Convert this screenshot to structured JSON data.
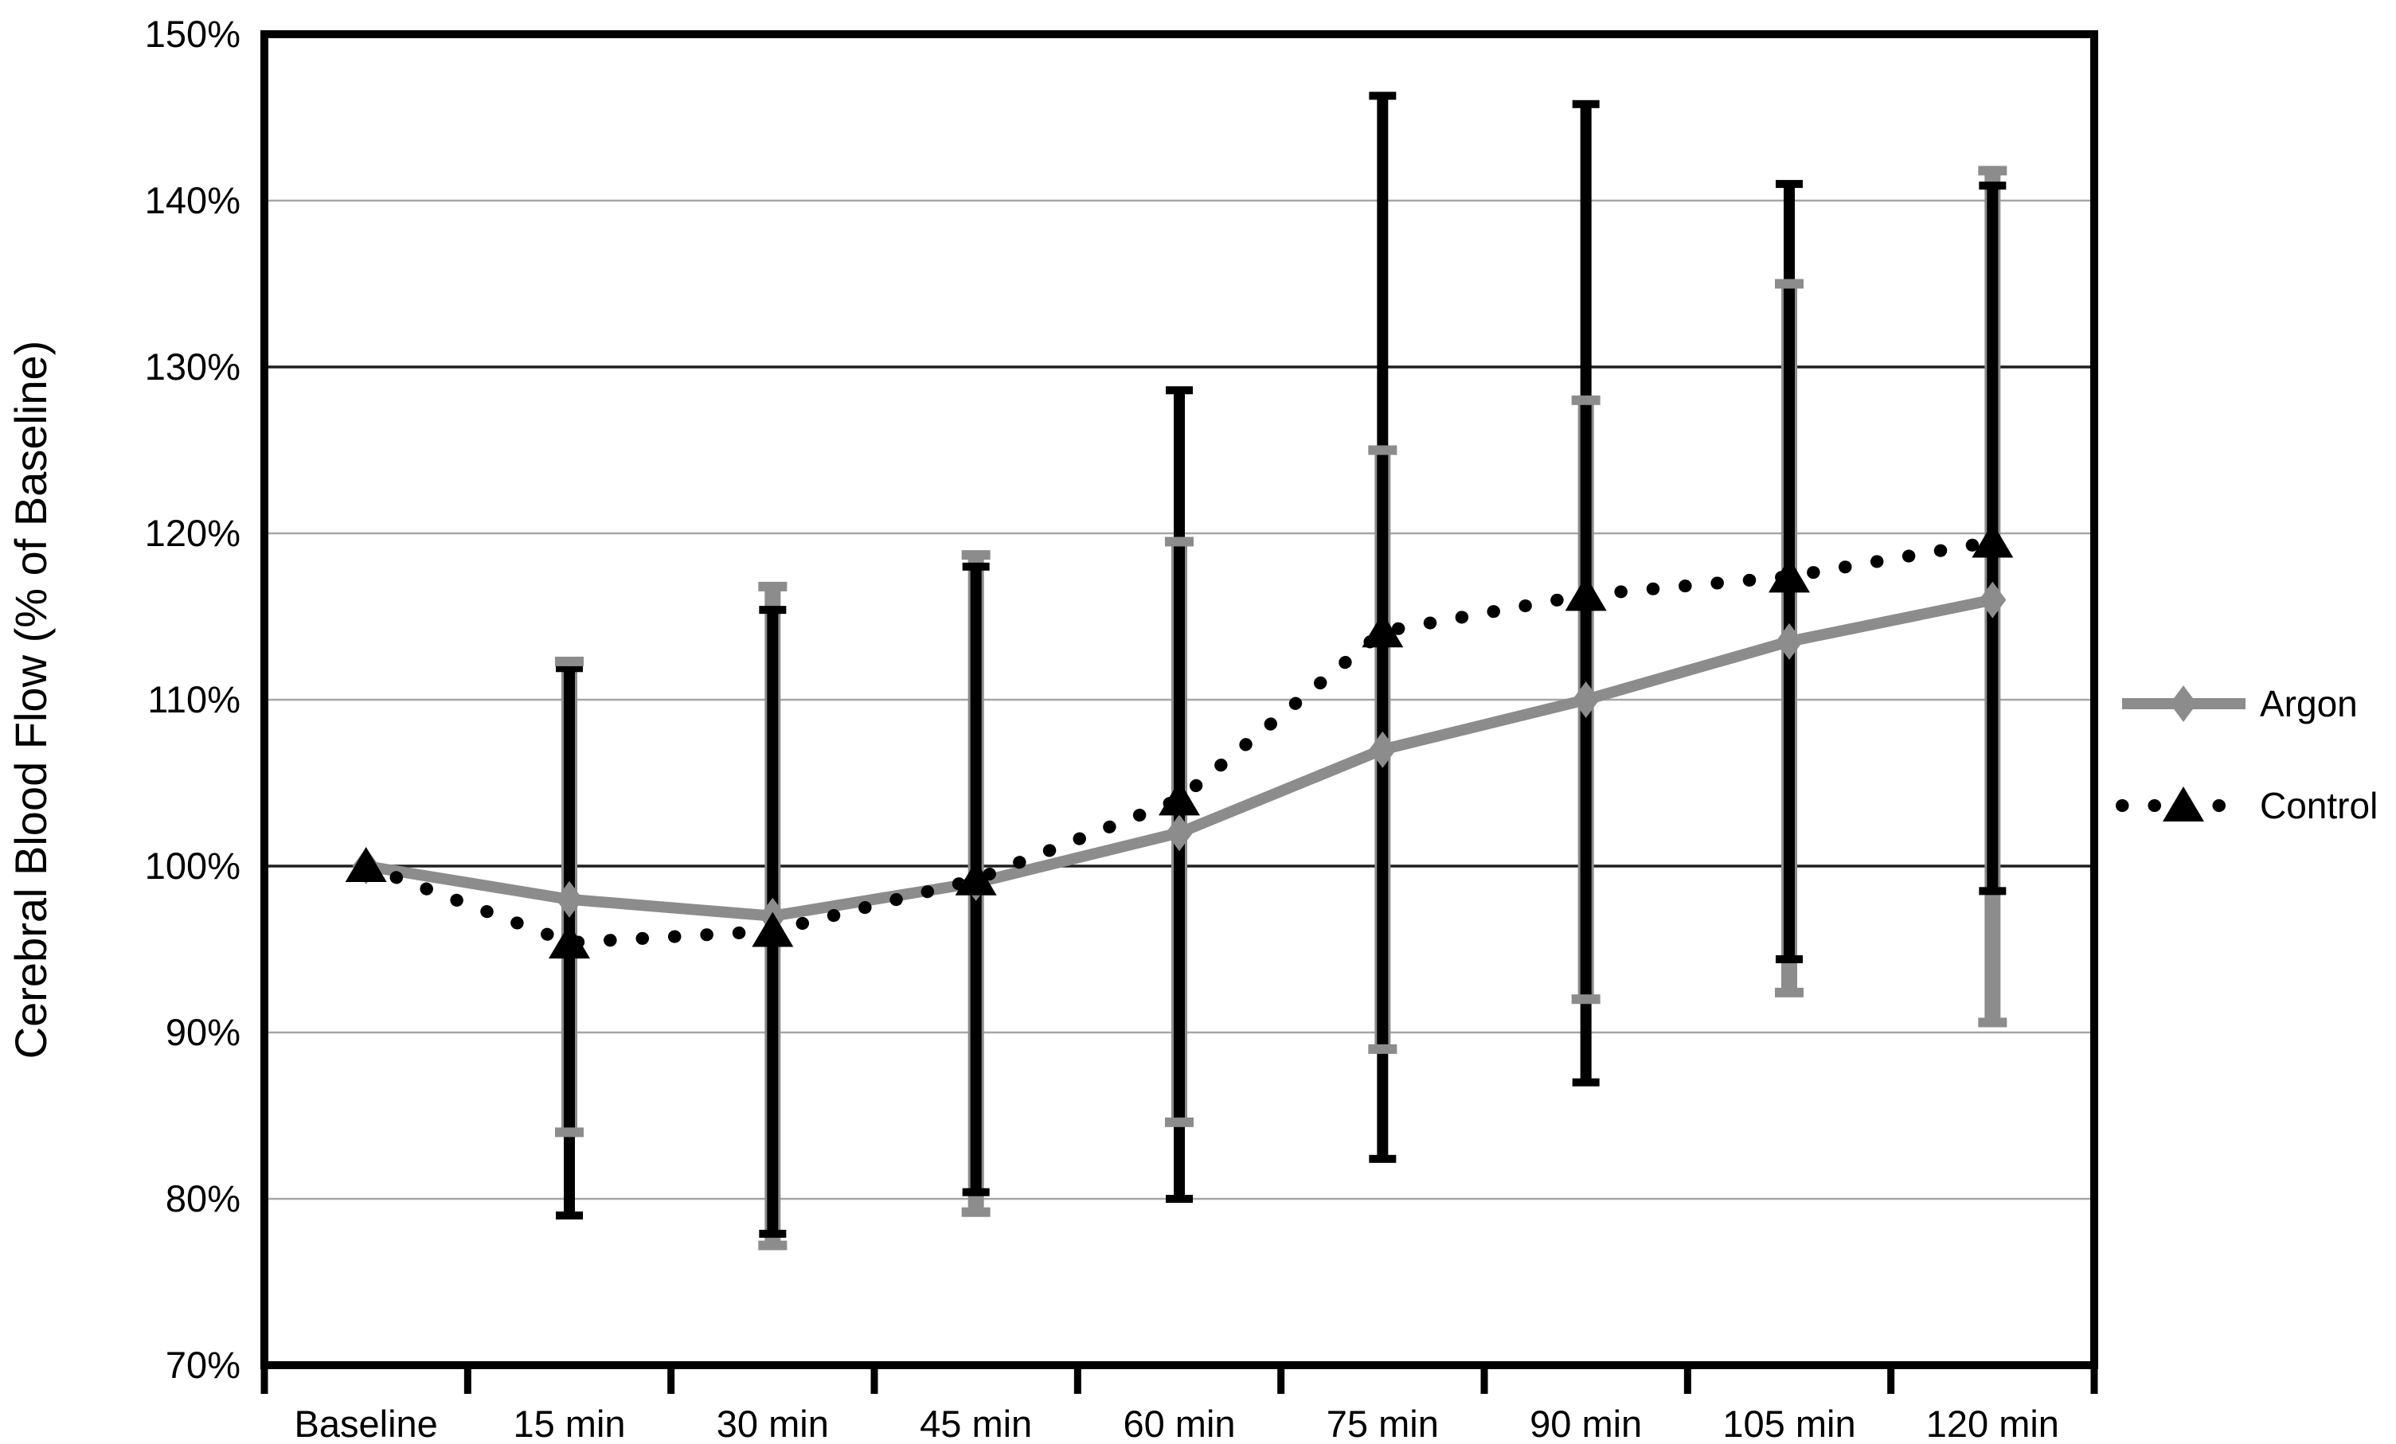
{
  "page": {
    "background": "#ffffff"
  },
  "chart_data": {
    "type": "line",
    "title": "",
    "xlabel": "",
    "ylabel": "Cerebral Blood Flow (% of Baseline)",
    "categories": [
      "Baseline",
      "15 min",
      "30 min",
      "45 min",
      "60 min",
      "75 min",
      "90 min",
      "105 min",
      "120 min"
    ],
    "series": [
      {
        "name": "Argon",
        "color": "#8c8c8c",
        "line": "solid",
        "marker": "diamond",
        "values": [
          100,
          98,
          97,
          99,
          102,
          107,
          110,
          113.5,
          116
        ],
        "err_low": [
          null,
          84,
          77.2,
          79.2,
          84.6,
          89,
          92,
          92.4,
          90.6
        ],
        "err_high": [
          null,
          112.3,
          116.8,
          118.7,
          119.5,
          125,
          128,
          135,
          141.8
        ]
      },
      {
        "name": "Control",
        "color": "#000000",
        "line": "dotted",
        "marker": "triangle",
        "values": [
          100,
          95.4,
          96.1,
          99.2,
          104,
          114.1,
          116.3,
          117.4,
          119.5
        ],
        "err_low": [
          null,
          79,
          77.9,
          80.4,
          80,
          82.4,
          87,
          94.4,
          98.5
        ],
        "err_high": [
          null,
          111.9,
          115.4,
          118,
          128.6,
          146.3,
          145.8,
          141,
          140.9
        ]
      }
    ],
    "ylim": [
      70,
      150
    ],
    "ytick_step": 10,
    "ytick_labels": [
      "150%",
      "140%",
      "130%",
      "120%",
      "110%",
      "100%",
      "90%",
      "80%",
      "70%"
    ],
    "grid": "horizontal",
    "emphasized_gridlines": [
      130,
      100
    ],
    "gridline_color": "#a6a6a6",
    "emphasized_gridline_color": "#1f1f1f",
    "axis_color": "#000000",
    "legend_position": "right"
  }
}
